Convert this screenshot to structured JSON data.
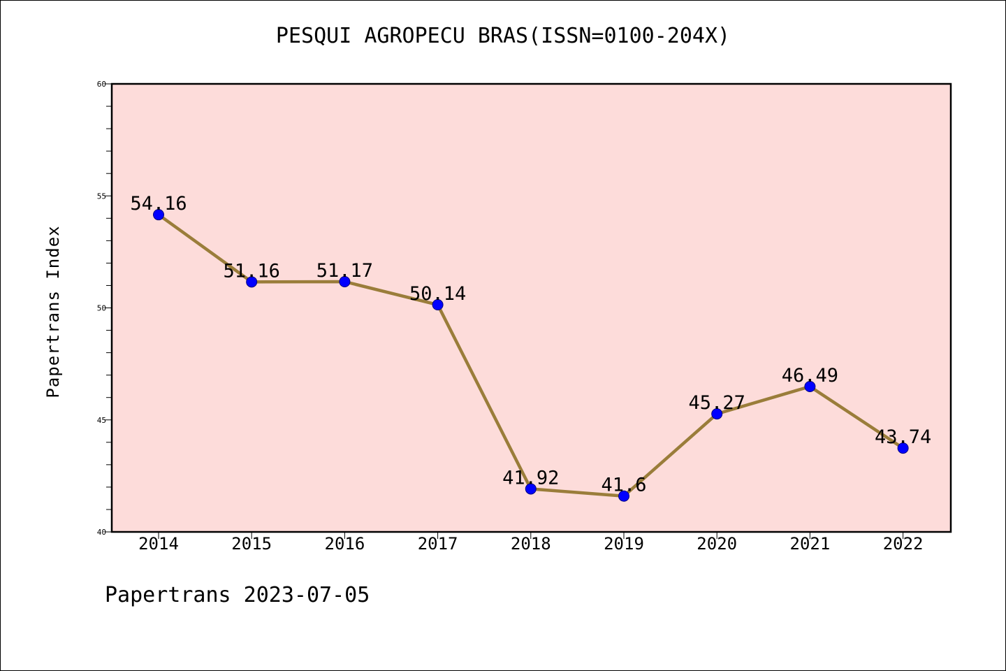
{
  "chart_data": {
    "type": "line",
    "title": "PESQUI AGROPECU BRAS(ISSN=0100-204X)",
    "ylabel": "Papertrans Index",
    "xlabel": "",
    "categories": [
      "2014",
      "2015",
      "2016",
      "2017",
      "2018",
      "2019",
      "2020",
      "2021",
      "2022"
    ],
    "series": [
      {
        "values": [
          54.16,
          51.16,
          51.17,
          50.14,
          41.92,
          41.6,
          45.27,
          46.49,
          43.74
        ],
        "labels": [
          "54.16",
          "51.16",
          "51.17",
          "50.14",
          "41.92",
          "41.6",
          "45.27",
          "46.49",
          "43.74"
        ]
      }
    ],
    "ylim": [
      40,
      60
    ],
    "yticks": [
      "40",
      "45",
      "50",
      "55",
      "60"
    ],
    "grid": false,
    "colors": {
      "plot_background": "#fddcda",
      "line": "#9a7d3a",
      "marker": "#0000ff",
      "marker_edge": "#000080"
    }
  },
  "footer": "Papertrans 2023-07-05"
}
